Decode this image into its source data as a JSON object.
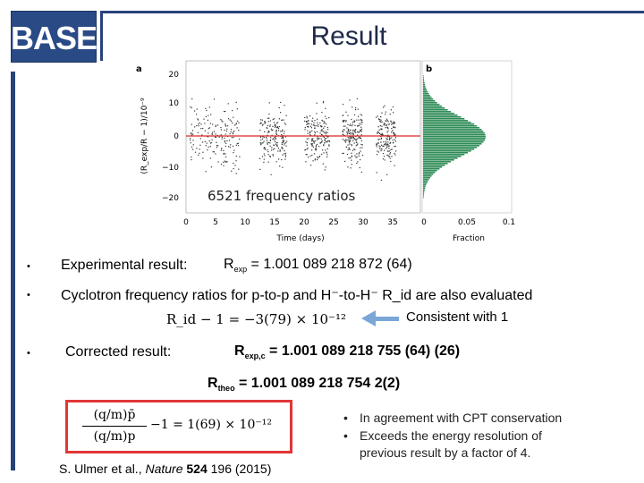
{
  "header": {
    "logo": "BASE",
    "title": "Result"
  },
  "chart_panel": {
    "panel_a_letter": "a",
    "panel_b_letter": "b",
    "ratios_label": "6521 frequency ratios",
    "x_label": "Time (days)",
    "y_label": "(R_exp/R − 1)/10⁻⁹",
    "fraction_label": "Fraction",
    "x_ticks": [
      "0",
      "5",
      "10",
      "15",
      "20",
      "25",
      "30",
      "35"
    ],
    "y_ticks": [
      "20",
      "10",
      "0",
      "−10",
      "−20"
    ],
    "fraction_ticks": [
      "0",
      "0.05",
      "0.1"
    ]
  },
  "bullets": {
    "experimental_label": "Experimental result:",
    "experimental_symbol": "R",
    "experimental_sub": "exp",
    "experimental_value": " = 1.001 089 218 872 (64)",
    "cyclotron_text": "Cyclotron frequency ratios for p-to-p and H⁻-to-H⁻ R_id are also evaluated",
    "rid_formula": "R_id − 1 = −3(79) × 10⁻¹²",
    "consistent_note": "Consistent with 1",
    "corrected_label": "Corrected result:",
    "corrected_symbol": "R",
    "corrected_sub": "exp,c",
    "corrected_value": " = 1.001 089 218 755 (64) (26)",
    "theo_symbol": "R",
    "theo_sub": "theo",
    "theo_value": " = 1.001 089 218 754 2(2)"
  },
  "result_formula": {
    "numerator": "(q/m)p̄",
    "denominator": "(q/m)p",
    "rhs": "−1 = 1(69) × 10⁻¹²"
  },
  "notes": [
    "In agreement with CPT conservation",
    "Exceeds the energy resolution of",
    "previous result by a factor of 4."
  ],
  "citation": {
    "authors": "S. Ulmer et al., ",
    "journal": "Nature",
    "volume": " 524",
    "rest": " 196 (2015)"
  },
  "colors": {
    "brand_blue": "#27427a",
    "fit_line": "#d62728",
    "histogram": "#2e8b57",
    "box_red": "#e13636",
    "arrow_blue": "#7aa6d8"
  }
}
